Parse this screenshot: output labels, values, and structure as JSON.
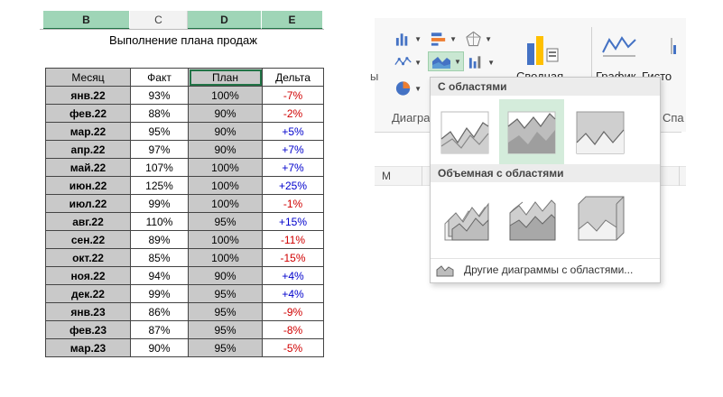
{
  "sheet": {
    "columns": [
      {
        "letter": "B",
        "selected": true
      },
      {
        "letter": "C",
        "selected": false
      },
      {
        "letter": "D",
        "selected": true
      },
      {
        "letter": "E",
        "selected": true
      }
    ],
    "title": "Выполнение плана продаж",
    "table": {
      "headers": [
        "Месяц",
        "Факт",
        "План",
        "Дельта"
      ],
      "rows": [
        {
          "month": "янв.22",
          "fact": "93%",
          "plan": "100%",
          "delta": "-7%",
          "sign": "neg"
        },
        {
          "month": "фев.22",
          "fact": "88%",
          "plan": "90%",
          "delta": "-2%",
          "sign": "neg"
        },
        {
          "month": "мар.22",
          "fact": "95%",
          "plan": "90%",
          "delta": "+5%",
          "sign": "pos"
        },
        {
          "month": "апр.22",
          "fact": "97%",
          "plan": "90%",
          "delta": "+7%",
          "sign": "pos"
        },
        {
          "month": "май.22",
          "fact": "107%",
          "plan": "100%",
          "delta": "+7%",
          "sign": "pos"
        },
        {
          "month": "июн.22",
          "fact": "125%",
          "plan": "100%",
          "delta": "+25%",
          "sign": "pos"
        },
        {
          "month": "июл.22",
          "fact": "99%",
          "plan": "100%",
          "delta": "-1%",
          "sign": "neg"
        },
        {
          "month": "авг.22",
          "fact": "110%",
          "plan": "95%",
          "delta": "+15%",
          "sign": "pos"
        },
        {
          "month": "сен.22",
          "fact": "89%",
          "plan": "100%",
          "delta": "-11%",
          "sign": "neg"
        },
        {
          "month": "окт.22",
          "fact": "85%",
          "plan": "100%",
          "delta": "-15%",
          "sign": "neg"
        },
        {
          "month": "ноя.22",
          "fact": "94%",
          "plan": "90%",
          "delta": "+4%",
          "sign": "pos"
        },
        {
          "month": "дек.22",
          "fact": "99%",
          "plan": "95%",
          "delta": "+4%",
          "sign": "pos"
        },
        {
          "month": "янв.23",
          "fact": "86%",
          "plan": "95%",
          "delta": "-9%",
          "sign": "neg"
        },
        {
          "month": "фев.23",
          "fact": "87%",
          "plan": "95%",
          "delta": "-8%",
          "sign": "neg"
        },
        {
          "month": "мар.23",
          "fact": "90%",
          "plan": "95%",
          "delta": "-5%",
          "sign": "neg"
        }
      ]
    }
  },
  "ribbon": {
    "label_pivot_fragment": "Сводная",
    "label_line_chart": "График",
    "label_histogram_fragment": "Гисто",
    "label_charts_group_fragment": "Диагра",
    "label_sparklines_fragment": "Спа",
    "label_left_cut": "ы",
    "column_m": "M",
    "icons": [
      "column-chart-icon",
      "bar-chart-icon",
      "radar-chart-icon",
      "scatter-chart-icon",
      "area-chart-icon",
      "stock-chart-icon",
      "pie-chart-icon",
      "pivot-chart-icon",
      "sparkline-line-icon"
    ]
  },
  "dropdown": {
    "section_2d": "С областями",
    "section_3d": "Объемная с областями",
    "more_label": "Другие диаграммы с областями...",
    "colors": {
      "accent_green": "#217346",
      "selected_bg": "#d4ecdb",
      "area_gray": "#c8c8c8"
    }
  }
}
